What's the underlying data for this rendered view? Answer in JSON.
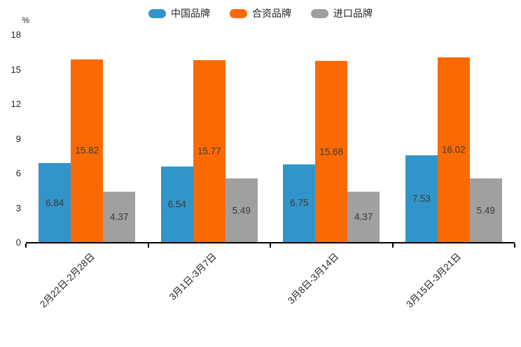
{
  "unit_label": "%",
  "chart_data": {
    "type": "bar",
    "title": "",
    "xlabel": "",
    "ylabel": "%",
    "categories": [
      "2月22日-2月28日",
      "3月1日-3月7日",
      "3月8日-3月14日",
      "3月15日-3月21日"
    ],
    "series": [
      {
        "name": "中国品牌",
        "color": "#3295C9",
        "values": [
          6.84,
          6.54,
          6.75,
          7.53
        ]
      },
      {
        "name": "合资品牌",
        "color": "#FB6A02",
        "values": [
          15.82,
          15.77,
          15.68,
          16.02
        ]
      },
      {
        "name": "进口品牌",
        "color": "#A0A0A0",
        "values": [
          4.37,
          5.49,
          4.37,
          5.49
        ]
      }
    ],
    "value_labels_shown": true,
    "yticks": [
      0,
      3,
      6,
      9,
      12,
      15,
      18
    ],
    "ylim": [
      0,
      18
    ],
    "grid": false,
    "legend_position": "top",
    "colors": {
      "axis": "#000000",
      "tick_text": "#262626",
      "value_label_text": "#3b3b3b"
    }
  }
}
